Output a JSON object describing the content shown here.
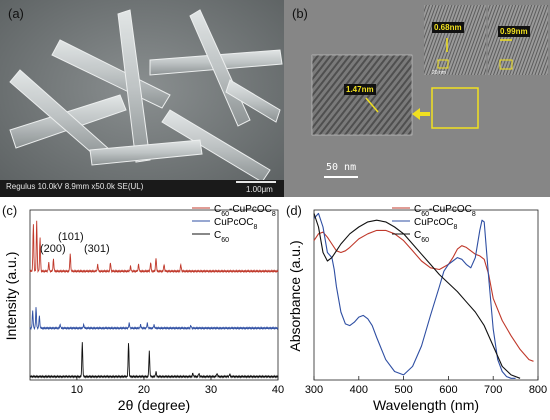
{
  "panels": {
    "a": {
      "label": "(a)",
      "sem_info": "Regulus 10.0kV 8.9mm x50.0k SE(UL)",
      "scalebar": "1.00μm"
    },
    "b": {
      "label": "(b)",
      "scalebar": "50 nm",
      "spacings": [
        "1.47nm",
        "0.68nm",
        "0.99nm"
      ],
      "inset_scale": "20 nm"
    },
    "c": {
      "label": "(c)"
    },
    "d": {
      "label": "(d)"
    }
  },
  "chart_data": [
    {
      "type": "line",
      "panel": "c",
      "xlabel": "2θ (degree)",
      "ylabel": "Intensity (a.u.)",
      "xlim": [
        3,
        40
      ],
      "x_ticks": [
        10,
        20,
        30,
        40
      ],
      "y_ticks": [],
      "legend": {
        "placement": "top-right"
      },
      "annotations": [
        "(200)",
        "(101)",
        "(301)"
      ],
      "series": [
        {
          "name": "C60-CuPcOC8",
          "name_main": "C",
          "name_sub": "60",
          "name_suffix": "-CuPcOC",
          "name_sub2": "8",
          "color": "#c0392b",
          "baseline": 0.64,
          "peaks": [
            [
              3.5,
              0.28
            ],
            [
              4.0,
              0.3
            ],
            [
              4.5,
              0.2
            ],
            [
              5.8,
              0.05
            ],
            [
              6.5,
              0.07
            ],
            [
              9.0,
              0.1
            ],
            [
              13.1,
              0.04
            ],
            [
              15.0,
              0.05
            ],
            [
              18.0,
              0.03
            ],
            [
              19.2,
              0.04
            ],
            [
              21.0,
              0.05
            ],
            [
              21.8,
              0.08
            ],
            [
              23.0,
              0.04
            ],
            [
              25.5,
              0.04
            ]
          ]
        },
        {
          "name": "CuPcOC8",
          "name_main": "CuPcOC",
          "name_sub": "8",
          "color": "#2f4fa3",
          "baseline": 0.305,
          "peaks": [
            [
              3.4,
              0.1
            ],
            [
              3.9,
              0.12
            ],
            [
              4.4,
              0.07
            ],
            [
              7.5,
              0.02
            ],
            [
              11.0,
              0.02
            ],
            [
              17.8,
              0.03
            ],
            [
              19.5,
              0.02
            ],
            [
              20.5,
              0.03
            ],
            [
              21.5,
              0.02
            ],
            [
              27.0,
              0.015
            ]
          ]
        },
        {
          "name": "C60",
          "name_main": "C",
          "name_sub": "60",
          "color": "#111111",
          "baseline": 0.02,
          "peaks": [
            [
              10.8,
              0.2
            ],
            [
              17.7,
              0.2
            ],
            [
              20.8,
              0.15
            ],
            [
              21.8,
              0.03
            ],
            [
              27.3,
              0.02
            ],
            [
              28.2,
              0.02
            ],
            [
              30.9,
              0.02
            ],
            [
              32.8,
              0.015
            ]
          ]
        }
      ]
    },
    {
      "type": "line",
      "panel": "d",
      "xlabel": "Wavelength (nm)",
      "ylabel": "Absorbance (a.u.)",
      "xlim": [
        300,
        800
      ],
      "x_ticks": [
        300,
        400,
        500,
        600,
        700,
        800
      ],
      "y_ticks": [],
      "legend": {
        "placement": "top-right"
      },
      "series": [
        {
          "name": "C60-CuPcOC8",
          "name_main": "C",
          "name_sub": "60",
          "name_suffix": "-CuPcOC",
          "name_sub2": "8",
          "color": "#c0392b",
          "x": [
            300,
            310,
            320,
            330,
            340,
            350,
            360,
            370,
            380,
            400,
            420,
            440,
            460,
            480,
            500,
            520,
            540,
            560,
            580,
            600,
            610,
            620,
            630,
            640,
            650,
            660,
            670,
            680,
            690,
            700,
            720,
            740,
            760,
            780,
            790
          ],
          "y": [
            0.82,
            0.86,
            0.87,
            0.84,
            0.8,
            0.76,
            0.75,
            0.76,
            0.78,
            0.83,
            0.86,
            0.88,
            0.88,
            0.86,
            0.82,
            0.76,
            0.7,
            0.66,
            0.65,
            0.68,
            0.72,
            0.77,
            0.79,
            0.78,
            0.76,
            0.74,
            0.73,
            0.71,
            0.62,
            0.48,
            0.35,
            0.26,
            0.18,
            0.12,
            0.11
          ]
        },
        {
          "name": "CuPcOC8",
          "name_main": "CuPcOC",
          "name_sub": "8",
          "color": "#2f4fa3",
          "x": [
            300,
            310,
            320,
            330,
            340,
            345,
            350,
            360,
            370,
            380,
            390,
            400,
            410,
            420,
            430,
            440,
            460,
            480,
            500,
            520,
            540,
            560,
            580,
            590,
            600,
            610,
            620,
            630,
            640,
            650,
            660,
            670,
            675,
            680,
            690,
            700,
            710,
            720,
            730,
            740,
            750
          ],
          "y": [
            0.95,
            0.98,
            0.9,
            0.75,
            0.72,
            0.65,
            0.55,
            0.4,
            0.33,
            0.32,
            0.34,
            0.37,
            0.38,
            0.36,
            0.32,
            0.25,
            0.12,
            0.05,
            0.03,
            0.08,
            0.2,
            0.38,
            0.55,
            0.64,
            0.68,
            0.7,
            0.72,
            0.71,
            0.68,
            0.66,
            0.72,
            0.88,
            0.94,
            0.93,
            0.6,
            0.3,
            0.12,
            0.05,
            0.02,
            0.01,
            0.01
          ]
        },
        {
          "name": "C60",
          "name_main": "C",
          "name_sub": "60",
          "color": "#111111",
          "x": [
            300,
            310,
            320,
            330,
            340,
            350,
            360,
            380,
            400,
            420,
            440,
            460,
            480,
            500,
            520,
            540,
            560,
            580,
            600,
            620,
            640,
            660,
            680,
            700,
            720,
            740,
            760
          ],
          "y": [
            0.98,
            0.9,
            0.75,
            0.7,
            0.72,
            0.76,
            0.8,
            0.86,
            0.9,
            0.93,
            0.94,
            0.93,
            0.9,
            0.86,
            0.8,
            0.74,
            0.68,
            0.62,
            0.57,
            0.52,
            0.46,
            0.4,
            0.32,
            0.2,
            0.08,
            0.03,
            0.01
          ]
        }
      ]
    }
  ]
}
